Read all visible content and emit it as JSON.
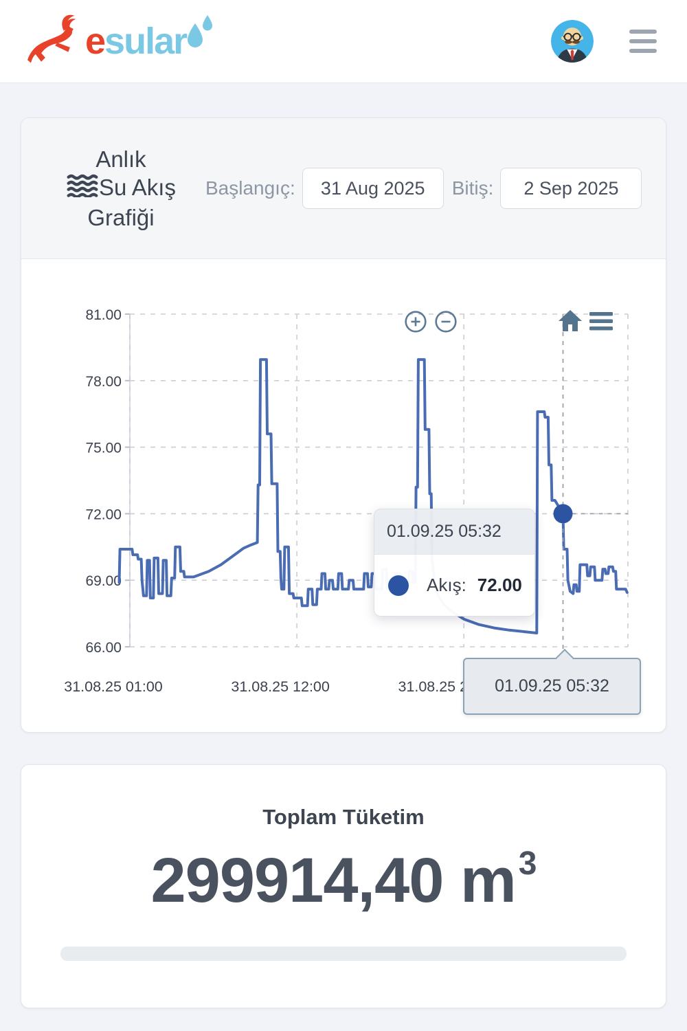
{
  "header": {
    "logo_red": "e",
    "logo_blue": "sular"
  },
  "chart_card": {
    "title_line1": "Anlık",
    "title_line2": "Su Akış",
    "title_line3": "Grafiği",
    "start_label": "Başlangıç:",
    "start_value": "31 Aug 2025",
    "end_label": "Bitiş:",
    "end_value": "2 Sep 2025"
  },
  "chart_data": {
    "type": "line",
    "title": "Anlık Su Akış Grafiği",
    "xlabel": "",
    "ylabel": "",
    "x_unit": "hours since 31.08.25 00:00",
    "x_domain": [
      0.3,
      33.75
    ],
    "ylim": [
      66,
      81
    ],
    "grid": true,
    "legend": "none",
    "yticks": [
      "81.00",
      "78.00",
      "75.00",
      "72.00",
      "69.00",
      "66.00"
    ],
    "ytick_values": [
      81,
      78,
      75,
      72,
      69,
      66
    ],
    "xticks": [
      {
        "t": 1,
        "label": "31.08.25 01:00"
      },
      {
        "t": 12,
        "label": "31.08.25 12:00"
      },
      {
        "t": 23,
        "label": "31.08.25 23:00"
      }
    ],
    "series": [
      {
        "name": "Akış",
        "color": "#4a6cb3",
        "points": [
          [
            0.3,
            68.9
          ],
          [
            0.35,
            70.4
          ],
          [
            1.15,
            70.4
          ],
          [
            1.2,
            70.15
          ],
          [
            1.5,
            70.15
          ],
          [
            1.55,
            69.95
          ],
          [
            1.75,
            69.95
          ],
          [
            1.8,
            69.0
          ],
          [
            1.9,
            68.3
          ],
          [
            2.1,
            68.3
          ],
          [
            2.15,
            69.9
          ],
          [
            2.3,
            69.9
          ],
          [
            2.35,
            68.2
          ],
          [
            2.55,
            68.2
          ],
          [
            2.6,
            70.0
          ],
          [
            2.85,
            70.0
          ],
          [
            2.9,
            68.4
          ],
          [
            3.15,
            68.4
          ],
          [
            3.2,
            69.9
          ],
          [
            3.4,
            69.9
          ],
          [
            3.45,
            68.3
          ],
          [
            3.7,
            68.3
          ],
          [
            3.75,
            69.1
          ],
          [
            3.95,
            69.1
          ],
          [
            4.0,
            70.5
          ],
          [
            4.3,
            70.5
          ],
          [
            4.35,
            69.4
          ],
          [
            4.55,
            69.4
          ],
          [
            4.6,
            69.15
          ],
          [
            5.2,
            69.15
          ],
          [
            5.6,
            69.25
          ],
          [
            6.2,
            69.4
          ],
          [
            7.0,
            69.7
          ],
          [
            7.8,
            70.1
          ],
          [
            8.5,
            70.45
          ],
          [
            9.0,
            70.6
          ],
          [
            9.4,
            70.7
          ],
          [
            9.45,
            73.3
          ],
          [
            9.55,
            73.3
          ],
          [
            9.6,
            78.95
          ],
          [
            10.0,
            78.95
          ],
          [
            10.05,
            75.6
          ],
          [
            10.3,
            75.6
          ],
          [
            10.35,
            73.35
          ],
          [
            10.7,
            73.35
          ],
          [
            10.75,
            70.3
          ],
          [
            10.9,
            70.3
          ],
          [
            10.95,
            69.1
          ],
          [
            11.0,
            68.6
          ],
          [
            11.15,
            68.6
          ],
          [
            11.2,
            70.5
          ],
          [
            11.45,
            70.5
          ],
          [
            11.5,
            68.4
          ],
          [
            11.75,
            68.4
          ],
          [
            11.8,
            68.2
          ],
          [
            12.3,
            68.2
          ],
          [
            12.35,
            67.85
          ],
          [
            12.7,
            67.85
          ],
          [
            12.75,
            68.6
          ],
          [
            13.0,
            68.6
          ],
          [
            13.05,
            67.9
          ],
          [
            13.3,
            67.9
          ],
          [
            13.35,
            68.6
          ],
          [
            13.6,
            68.6
          ],
          [
            13.65,
            69.3
          ],
          [
            13.85,
            69.3
          ],
          [
            13.9,
            68.6
          ],
          [
            14.1,
            68.6
          ],
          [
            14.15,
            69.0
          ],
          [
            14.35,
            69.0
          ],
          [
            14.4,
            68.6
          ],
          [
            14.7,
            68.6
          ],
          [
            14.75,
            69.3
          ],
          [
            14.95,
            69.3
          ],
          [
            15.0,
            68.6
          ],
          [
            15.4,
            68.6
          ],
          [
            15.45,
            69.0
          ],
          [
            15.7,
            69.0
          ],
          [
            15.75,
            68.6
          ],
          [
            16.4,
            68.6
          ],
          [
            16.45,
            69.3
          ],
          [
            16.65,
            69.3
          ],
          [
            16.7,
            68.7
          ],
          [
            16.9,
            68.7
          ],
          [
            16.95,
            69.3
          ],
          [
            17.15,
            69.3
          ],
          [
            17.2,
            68.6
          ],
          [
            17.6,
            68.6
          ],
          [
            17.65,
            69.5
          ],
          [
            17.9,
            69.5
          ],
          [
            17.95,
            68.6
          ],
          [
            18.45,
            68.6
          ],
          [
            18.5,
            69.3
          ],
          [
            18.75,
            69.3
          ],
          [
            18.8,
            68.9
          ],
          [
            19.35,
            68.9
          ],
          [
            19.4,
            69.4
          ],
          [
            19.6,
            69.4
          ],
          [
            19.65,
            68.9
          ],
          [
            19.8,
            68.9
          ],
          [
            19.85,
            73.2
          ],
          [
            19.95,
            73.2
          ],
          [
            20.0,
            78.95
          ],
          [
            20.4,
            78.95
          ],
          [
            20.45,
            75.8
          ],
          [
            20.7,
            75.8
          ],
          [
            20.75,
            72.9
          ],
          [
            20.85,
            72.9
          ],
          [
            20.9,
            70.0
          ],
          [
            21.05,
            69.0
          ],
          [
            21.3,
            68.3
          ],
          [
            21.7,
            67.9
          ],
          [
            22.2,
            67.6
          ],
          [
            23.0,
            67.25
          ],
          [
            24.0,
            67.0
          ],
          [
            25.0,
            66.85
          ],
          [
            26.0,
            66.75
          ],
          [
            27.0,
            66.68
          ],
          [
            27.8,
            66.62
          ],
          [
            27.85,
            76.6
          ],
          [
            28.3,
            76.6
          ],
          [
            28.35,
            76.35
          ],
          [
            28.55,
            76.35
          ],
          [
            28.6,
            74.2
          ],
          [
            28.75,
            74.2
          ],
          [
            28.8,
            72.6
          ],
          [
            29.0,
            72.6
          ],
          [
            29.53,
            72.0
          ],
          [
            29.58,
            70.4
          ],
          [
            29.8,
            70.4
          ],
          [
            29.85,
            69.0
          ],
          [
            30.0,
            68.5
          ],
          [
            30.2,
            68.4
          ],
          [
            30.25,
            68.8
          ],
          [
            30.4,
            68.8
          ],
          [
            30.45,
            68.5
          ],
          [
            30.6,
            68.5
          ],
          [
            30.65,
            69.7
          ],
          [
            31.1,
            69.7
          ],
          [
            31.15,
            69.2
          ],
          [
            31.3,
            69.2
          ],
          [
            31.35,
            69.6
          ],
          [
            31.6,
            69.6
          ],
          [
            31.65,
            69.0
          ],
          [
            32.1,
            69.0
          ],
          [
            32.15,
            69.5
          ],
          [
            32.3,
            69.5
          ],
          [
            32.35,
            69.3
          ],
          [
            32.5,
            69.3
          ],
          [
            32.55,
            69.6
          ],
          [
            32.8,
            69.6
          ],
          [
            32.85,
            69.4
          ],
          [
            33.0,
            69.4
          ],
          [
            33.05,
            68.6
          ],
          [
            33.65,
            68.6
          ],
          [
            33.75,
            68.45
          ]
        ]
      }
    ],
    "crosshair": {
      "t": 29.53,
      "value": 72.0
    },
    "tooltip": {
      "header": "01.09.25 05:32",
      "series_label": "Akış:",
      "value": "72.00"
    },
    "axis_tooltip": {
      "label": "01.09.25 05:32"
    }
  },
  "total_card": {
    "title": "Toplam Tüketim",
    "value": "299914,40",
    "unit": "m",
    "unit_exp": "3"
  },
  "colors": {
    "accent_red": "#e8432a",
    "logo_blue": "#7bc8e5",
    "line_blue": "#4a6cb3",
    "marker_blue": "#2d54a3",
    "avatar_bg": "#45b4e8",
    "toolbar_icon": "#54748e",
    "page_bg": "#f1f3f8"
  }
}
